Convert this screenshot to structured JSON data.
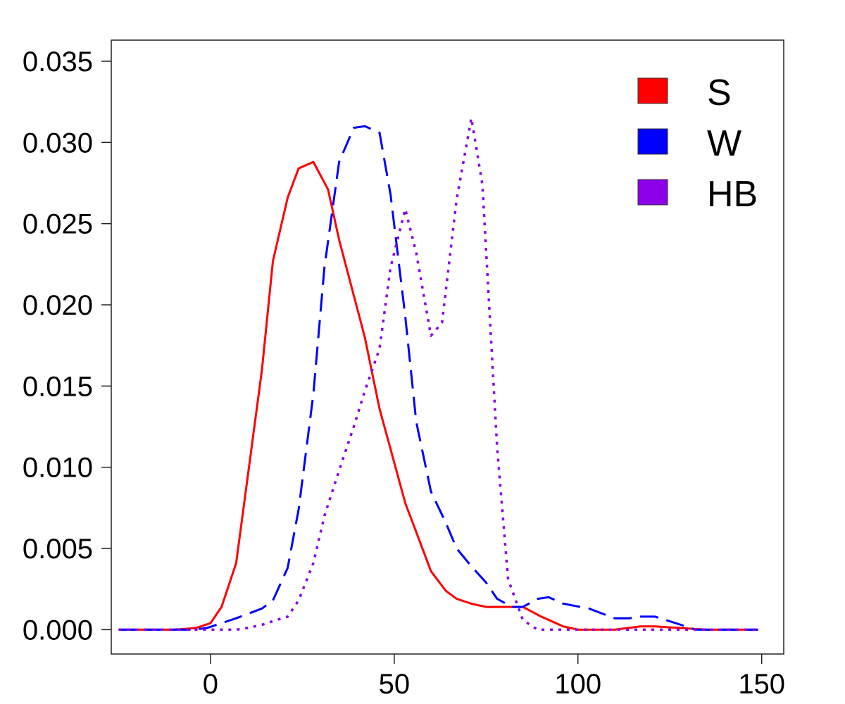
{
  "chart_data": {
    "type": "line",
    "title": "",
    "xlabel": "",
    "ylabel": "",
    "xlim": [
      -27,
      156
    ],
    "ylim": [
      -0.0015,
      0.0363
    ],
    "x_ticks": [
      0,
      50,
      100,
      150
    ],
    "x_tick_labels": [
      "0",
      "50",
      "100",
      "150"
    ],
    "y_ticks": [
      0.0,
      0.005,
      0.01,
      0.015,
      0.02,
      0.025,
      0.03,
      0.035
    ],
    "y_tick_labels": [
      "0.000",
      "0.005",
      "0.010",
      "0.015",
      "0.020",
      "0.025",
      "0.030",
      "0.035"
    ],
    "grid": false,
    "legend_position": "top-right",
    "series": [
      {
        "name": "S",
        "color": "#ff0000",
        "style": "solid",
        "points": [
          [
            -25,
            0
          ],
          [
            -10,
            0
          ],
          [
            -4,
            0.0001
          ],
          [
            0,
            0.0004
          ],
          [
            3,
            0.0014
          ],
          [
            7,
            0.0041
          ],
          [
            10,
            0.0092
          ],
          [
            14,
            0.016
          ],
          [
            17,
            0.0227
          ],
          [
            21,
            0.0266
          ],
          [
            24,
            0.0284
          ],
          [
            28,
            0.0288
          ],
          [
            32,
            0.0271
          ],
          [
            35,
            0.024
          ],
          [
            42,
            0.018
          ],
          [
            46,
            0.0136
          ],
          [
            50,
            0.0103
          ],
          [
            53,
            0.0078
          ],
          [
            57,
            0.0054
          ],
          [
            60,
            0.0036
          ],
          [
            64,
            0.0024
          ],
          [
            67,
            0.0019
          ],
          [
            71,
            0.0016
          ],
          [
            75,
            0.0014
          ],
          [
            85,
            0.0014
          ],
          [
            90,
            0.0008
          ],
          [
            96,
            0.0002
          ],
          [
            100,
            0
          ],
          [
            110,
            0
          ],
          [
            117,
            0.0002
          ],
          [
            121,
            0.0002
          ],
          [
            128,
            0.0001
          ],
          [
            135,
            0
          ],
          [
            149,
            0
          ]
        ]
      },
      {
        "name": "W",
        "color": "#0000ff",
        "style": "dashed",
        "points": [
          [
            -25,
            0
          ],
          [
            -5,
            0
          ],
          [
            -1,
            0.0001
          ],
          [
            3,
            0.0004
          ],
          [
            7,
            0.0007
          ],
          [
            14,
            0.0013
          ],
          [
            17,
            0.0018
          ],
          [
            21,
            0.0038
          ],
          [
            24,
            0.0074
          ],
          [
            28,
            0.0145
          ],
          [
            31,
            0.0223
          ],
          [
            35,
            0.0288
          ],
          [
            39,
            0.0309
          ],
          [
            42,
            0.031
          ],
          [
            46,
            0.0306
          ],
          [
            49,
            0.0268
          ],
          [
            53,
            0.0193
          ],
          [
            56,
            0.0128
          ],
          [
            60,
            0.0085
          ],
          [
            64,
            0.0066
          ],
          [
            67,
            0.005
          ],
          [
            71,
            0.0039
          ],
          [
            75,
            0.0029
          ],
          [
            78,
            0.0019
          ],
          [
            82,
            0.0014
          ],
          [
            85,
            0.0014
          ],
          [
            89,
            0.0019
          ],
          [
            92,
            0.002
          ],
          [
            96,
            0.0016
          ],
          [
            103,
            0.0013
          ],
          [
            110,
            0.0007
          ],
          [
            114,
            0.0007
          ],
          [
            117,
            0.0008
          ],
          [
            121,
            0.0008
          ],
          [
            128,
            0.0003
          ],
          [
            132,
            0
          ],
          [
            149,
            0
          ]
        ]
      },
      {
        "name": "HB",
        "color": "#8b00e8",
        "style": "dotted",
        "points": [
          [
            -25,
            0
          ],
          [
            3,
            0
          ],
          [
            7,
            0
          ],
          [
            10,
            0.0001
          ],
          [
            14,
            0.0003
          ],
          [
            18,
            0.0006
          ],
          [
            21,
            0.0008
          ],
          [
            24,
            0.0018
          ],
          [
            28,
            0.0041
          ],
          [
            31,
            0.007
          ],
          [
            35,
            0.0098
          ],
          [
            39,
            0.0125
          ],
          [
            42,
            0.0147
          ],
          [
            46,
            0.0173
          ],
          [
            49,
            0.0223
          ],
          [
            53,
            0.0259
          ],
          [
            56,
            0.0232
          ],
          [
            60,
            0.0181
          ],
          [
            63,
            0.0189
          ],
          [
            67,
            0.0265
          ],
          [
            71,
            0.0315
          ],
          [
            74,
            0.0274
          ],
          [
            78,
            0.0112
          ],
          [
            81,
            0.0031
          ],
          [
            85,
            0.0006
          ],
          [
            89,
            0
          ],
          [
            149,
            0
          ]
        ]
      }
    ]
  }
}
